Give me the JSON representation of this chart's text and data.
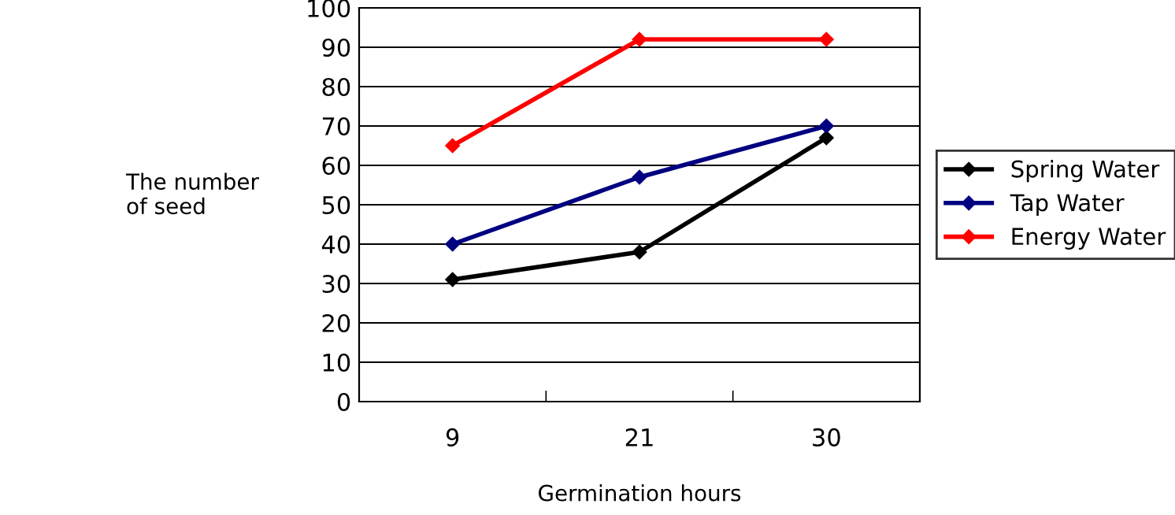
{
  "chart_data": {
    "type": "line",
    "xlabel": "Germination hours",
    "ylabel": "The number\nof seed",
    "categories": [
      "9",
      "21",
      "30"
    ],
    "series": [
      {
        "name": "Spring Water",
        "color": "#000000",
        "values": [
          31,
          38,
          67
        ]
      },
      {
        "name": "Tap Water",
        "color": "#000080",
        "values": [
          40,
          57,
          70
        ]
      },
      {
        "name": "Energy Water",
        "color": "#ff0000",
        "values": [
          65,
          92,
          92
        ]
      }
    ],
    "ylim": [
      0,
      100
    ],
    "yticks": [
      0,
      10,
      20,
      30,
      40,
      50,
      60,
      70,
      80,
      90,
      100
    ],
    "grid": "y",
    "legend": "right",
    "marker": "diamond",
    "line_style": "solid"
  }
}
